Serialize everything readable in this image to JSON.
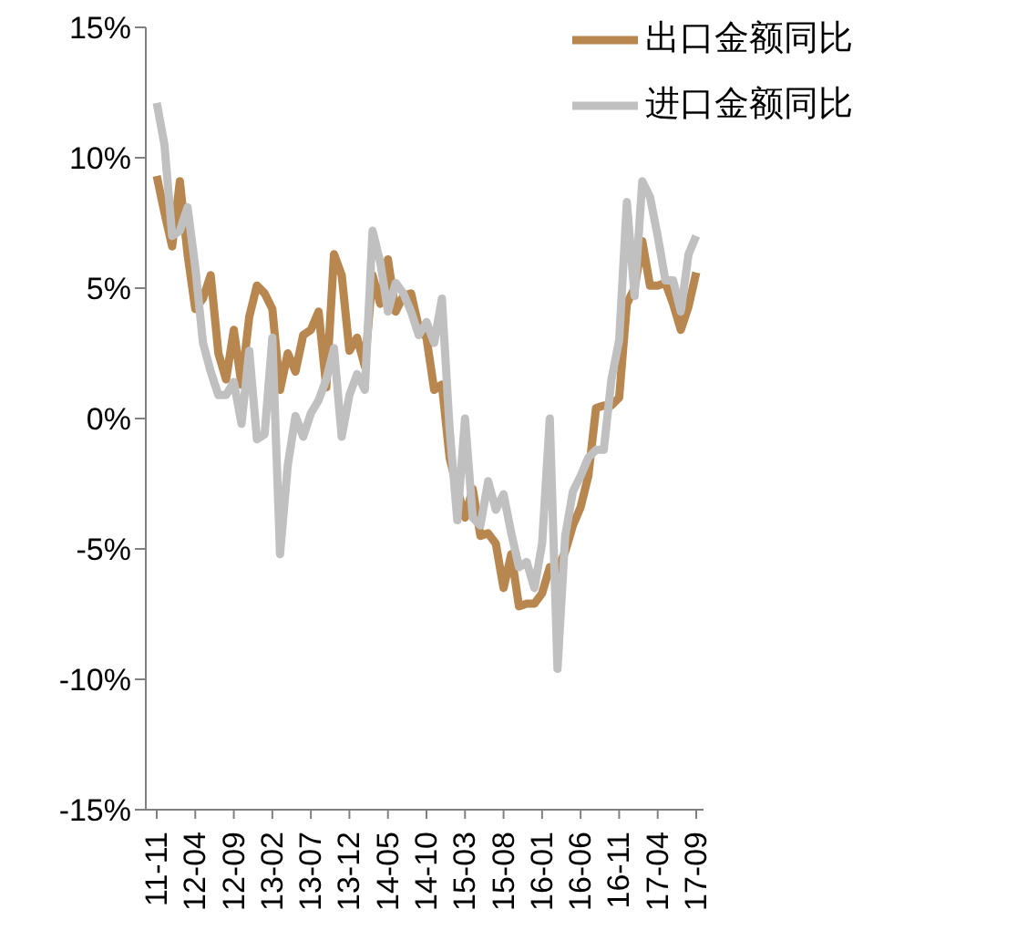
{
  "chart_data": {
    "type": "line",
    "categories": [
      "11-11",
      null,
      null,
      null,
      null,
      "12-04",
      null,
      null,
      null,
      null,
      "12-09",
      null,
      null,
      null,
      null,
      "13-02",
      null,
      null,
      null,
      null,
      "13-07",
      null,
      null,
      null,
      null,
      "13-12",
      null,
      null,
      null,
      null,
      "14-05",
      null,
      null,
      null,
      null,
      "14-10",
      null,
      null,
      null,
      null,
      "15-03",
      null,
      null,
      null,
      null,
      "15-08",
      null,
      null,
      null,
      null,
      "16-01",
      null,
      null,
      null,
      null,
      "16-06",
      null,
      null,
      null,
      null,
      "16-11",
      null,
      null,
      null,
      null,
      "17-04",
      null,
      null,
      null,
      null,
      "17-09"
    ],
    "series": [
      {
        "name": "出口金额同比",
        "color": "#b8864f",
        "values": [
          9.3,
          7.9,
          6.6,
          9.1,
          6.3,
          4.2,
          4.6,
          5.5,
          2.5,
          1.5,
          3.4,
          1.3,
          3.9,
          5.1,
          4.8,
          4.2,
          1.1,
          2.5,
          1.8,
          3.2,
          3.4,
          4.1,
          1.2,
          6.3,
          5.5,
          2.6,
          3.1,
          2.0,
          5.5,
          4.4,
          6.1,
          4.1,
          4.7,
          4.8,
          3.5,
          3.1,
          1.1,
          1.3,
          -1.5,
          -2.7,
          -3.8,
          -2.7,
          -4.5,
          -4.4,
          -4.8,
          -6.5,
          -5.2,
          -7.2,
          -7.1,
          -7.1,
          -6.7,
          -5.7,
          -5.8,
          -5.1,
          -4.1,
          -3.4,
          -2.2,
          0.4,
          0.5,
          0.5,
          0.8,
          4.4,
          5.0,
          6.8,
          5.1,
          5.1,
          5.2,
          4.4,
          3.4,
          4.3,
          5.6
        ]
      },
      {
        "name": "进口金额同比",
        "color": "#c0c0c0",
        "values": [
          12.1,
          10.5,
          7.0,
          7.2,
          8.1,
          5.8,
          2.9,
          1.8,
          0.9,
          0.9,
          1.4,
          -0.2,
          2.6,
          -0.8,
          -0.6,
          3.1,
          -5.2,
          -1.8,
          0.1,
          -0.7,
          0.2,
          0.7,
          1.5,
          2.7,
          -0.7,
          0.9,
          1.7,
          1.1,
          7.2,
          6.0,
          4.1,
          5.2,
          4.8,
          4.1,
          3.2,
          3.7,
          2.9,
          4.6,
          -0.4,
          -3.9,
          0.0,
          -3.8,
          -4.1,
          -2.4,
          -3.5,
          -2.9,
          -4.4,
          -5.7,
          -5.5,
          -6.5,
          -4.8,
          0.0,
          -9.6,
          -4.5,
          -2.8,
          -2.2,
          -1.5,
          -1.2,
          -1.2,
          1.5,
          3.0,
          8.3,
          4.7,
          9.1,
          8.5,
          7.0,
          5.3,
          5.3,
          4.1,
          6.3,
          7.0
        ]
      }
    ],
    "ylim": [
      -15,
      15
    ],
    "yticks": [
      {
        "value": -15,
        "label": "-15%"
      },
      {
        "value": -10,
        "label": "-10%"
      },
      {
        "value": -5,
        "label": "-5%"
      },
      {
        "value": 0,
        "label": "0%"
      },
      {
        "value": 5,
        "label": "5%"
      },
      {
        "value": 10,
        "label": "10%"
      },
      {
        "value": 15,
        "label": "15%"
      }
    ],
    "legend": "top right",
    "marker": "none",
    "line_style": "solid"
  }
}
